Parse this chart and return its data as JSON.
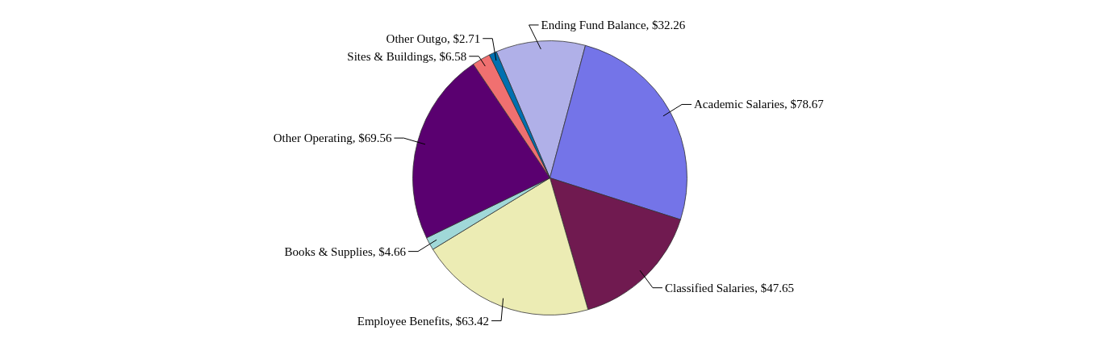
{
  "chart_data": {
    "type": "pie",
    "categories": [
      "Ending Fund Balance",
      "Academic Salaries",
      "Classified Salaries",
      "Employee Benefits",
      "Books & Supplies",
      "Other Operating",
      "Sites & Buildings",
      "Other Outgo"
    ],
    "values": [
      32.26,
      78.67,
      47.65,
      63.42,
      4.66,
      69.56,
      6.58,
      2.71
    ],
    "colors": [
      "#b0b0e8",
      "#7474e8",
      "#701a50",
      "#ececb4",
      "#a0d8d8",
      "#5a0070",
      "#f07070",
      "#0070b0"
    ],
    "value_labels": [
      "$32.26",
      "$78.67",
      "$47.65",
      "$63.42",
      "$4.66",
      "$69.56",
      "$6.58",
      "$2.71"
    ]
  }
}
